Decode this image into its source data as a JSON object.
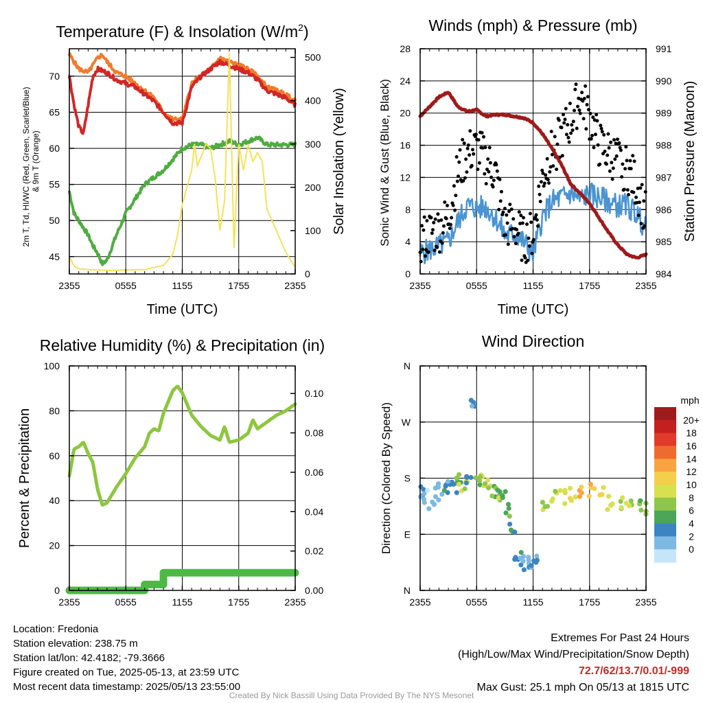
{
  "chart_data": [
    {
      "type": "line",
      "title": "Temperature (F) & Insolation (W/m²)",
      "xlabel": "Time (UTC)",
      "ylabel": "2m T, Td, HI/WC (Red, Green, Scarlet/Blue)",
      "ylabel2": "& 9m T (Orange)",
      "ylabel_right": "Solar Insolation (Yellow)",
      "x_ticks": [
        "2355",
        "0555",
        "1155",
        "1755",
        "2355"
      ],
      "y_ticks": [
        45,
        50,
        55,
        60,
        65,
        70
      ],
      "y2_ticks": [
        0,
        100,
        200,
        300,
        400,
        500
      ],
      "ylim": [
        42.6,
        73.8
      ],
      "y2lim": [
        0,
        520
      ],
      "grid": true,
      "series": [
        {
          "color": "#f07b2a",
          "x": [
            0,
            1,
            2,
            3,
            3.5,
            4,
            5,
            6,
            7,
            8,
            9,
            10,
            11,
            12,
            13,
            14,
            15,
            16,
            17,
            18,
            19,
            20,
            21,
            22,
            23,
            24
          ],
          "values": [
            73,
            71,
            70.5,
            72.5,
            73,
            72,
            70.5,
            70,
            69,
            68,
            67,
            65,
            64,
            64,
            69,
            70,
            71,
            72.5,
            72,
            71.5,
            71,
            70,
            68.5,
            68,
            67.5,
            66.5
          ]
        },
        {
          "color": "#d12727",
          "x": [
            0,
            0.5,
            1,
            1.5,
            2,
            2.5,
            3,
            4,
            5,
            6,
            7,
            8,
            9,
            10,
            11,
            12,
            13,
            14,
            15,
            16,
            17,
            18,
            19,
            20,
            21,
            22,
            23,
            24
          ],
          "values": [
            70,
            66,
            63,
            62,
            66,
            70,
            71,
            70.5,
            69.5,
            69,
            68.5,
            67.5,
            66.5,
            65,
            63.5,
            63.5,
            68.5,
            70,
            71,
            72,
            71.5,
            71,
            70.5,
            69.5,
            68,
            67.5,
            67,
            66
          ]
        },
        {
          "color": "#4fac41",
          "x": [
            0,
            0.5,
            1,
            1.5,
            2,
            2.5,
            3,
            3.5,
            4,
            5,
            6,
            7,
            8,
            9,
            10,
            11,
            12,
            13,
            14,
            15,
            16,
            17,
            18,
            19,
            20,
            21,
            22,
            23,
            24
          ],
          "values": [
            54,
            51,
            50,
            49,
            48,
            46.5,
            45.5,
            44,
            44.5,
            48,
            51,
            53,
            55,
            56,
            57,
            58.5,
            60,
            60.5,
            60.5,
            60,
            60.5,
            61,
            60.5,
            61,
            61.5,
            60.5,
            60.5,
            60.5,
            60.5
          ]
        },
        {
          "color": "#f7e156",
          "axis": "right",
          "x": [
            0,
            0.5,
            1,
            2,
            4,
            8,
            10,
            11,
            11.5,
            12,
            13,
            13.3,
            13.6,
            14,
            14.5,
            15,
            15.5,
            16,
            16.5,
            17,
            17.5,
            18,
            18.5,
            19,
            19.5,
            20,
            20.5,
            21,
            22,
            23,
            24
          ],
          "values": [
            40,
            18,
            12,
            10,
            8,
            10,
            20,
            45,
            90,
            160,
            240,
            300,
            250,
            270,
            300,
            290,
            220,
            100,
            170,
            510,
            60,
            300,
            240,
            300,
            260,
            280,
            260,
            150,
            100,
            50,
            15
          ]
        }
      ]
    },
    {
      "type": "line",
      "title": "Winds (mph) & Pressure (mb)",
      "xlabel": "Time (UTC)",
      "ylabel": "Sonic Wind & Gust (Blue, Black)",
      "ylabel_right": "Station Pressure (Maroon)",
      "x_ticks": [
        "2355",
        "0555",
        "1155",
        "1755",
        "2355"
      ],
      "y_ticks": [
        0,
        4,
        8,
        12,
        16,
        20,
        24,
        28
      ],
      "y2_ticks": [
        984,
        985,
        986,
        987,
        988,
        989,
        990,
        991
      ],
      "ylim": [
        0,
        28
      ],
      "y2lim": [
        984,
        991
      ],
      "grid": true,
      "series": [
        {
          "name": "wind",
          "color": "#4a94d2",
          "x": [
            0,
            1,
            2,
            3,
            4,
            5,
            6,
            7,
            8,
            9,
            10,
            11,
            12,
            13,
            14,
            15,
            16,
            17,
            18,
            19,
            20,
            21,
            22,
            23,
            24
          ],
          "values": [
            2.5,
            3,
            3.5,
            4,
            6.5,
            8.5,
            8.2,
            8.3,
            7,
            4.8,
            5,
            4,
            2.5,
            7,
            9,
            9.5,
            10,
            9.3,
            10,
            9.5,
            9,
            8.5,
            8.5,
            7.5,
            5.5
          ]
        },
        {
          "name": "gust",
          "color": "#000000",
          "type": "scatter",
          "x": [
            0,
            1,
            2,
            3,
            4,
            5,
            6,
            7,
            8,
            9,
            10,
            11,
            12,
            13,
            14,
            15,
            16,
            17,
            18,
            19,
            20,
            21,
            22,
            23,
            24
          ],
          "values": [
            4,
            5,
            5.5,
            7,
            12.5,
            15,
            15.5,
            14,
            12.5,
            6,
            6,
            4,
            5,
            12,
            15,
            17,
            19,
            22,
            19.5,
            16,
            15,
            14,
            13,
            11,
            7
          ]
        },
        {
          "name": "pressure",
          "color": "#9e1b1b",
          "axis": "right",
          "x": [
            0,
            1,
            2,
            3,
            4,
            5,
            6,
            7,
            8,
            9,
            10,
            11,
            12,
            13,
            14,
            15,
            16,
            17,
            18,
            19,
            20,
            21,
            22,
            23,
            24
          ],
          "values": [
            988.9,
            989.2,
            989.5,
            989.65,
            989.2,
            989.05,
            989.1,
            988.9,
            988.95,
            988.95,
            988.9,
            988.85,
            988.7,
            988.35,
            987.9,
            987.4,
            986.8,
            986.5,
            986.2,
            985.75,
            985.3,
            984.9,
            984.6,
            984.5,
            984.6
          ]
        }
      ]
    },
    {
      "type": "line",
      "title": "Relative Humidity (%) & Precipitation (in)",
      "ylabel": "Percent & Precipitation",
      "x_ticks": [
        "2355",
        "0555",
        "1155",
        "1755",
        "2355"
      ],
      "y_ticks": [
        0,
        20,
        40,
        60,
        80,
        100
      ],
      "y2_ticks": [
        "0.00",
        "0.02",
        "0.04",
        "0.06",
        "0.08",
        "0.10"
      ],
      "ylim": [
        0,
        100
      ],
      "y2lim": [
        0,
        0.114
      ],
      "grid": true,
      "series": [
        {
          "name": "humidity",
          "color": "#8dc63f",
          "x": [
            0,
            0.5,
            1,
            1.5,
            2,
            2.5,
            3,
            3.5,
            4,
            5,
            6,
            7,
            8,
            8.5,
            9,
            9.5,
            10,
            11,
            11.5,
            12,
            13,
            14,
            15,
            16,
            16.5,
            17,
            18,
            19,
            19.5,
            20,
            21,
            22,
            23,
            24
          ],
          "values": [
            51,
            63,
            64,
            66,
            61,
            57,
            45,
            38,
            39,
            46,
            52,
            59,
            64,
            70,
            72,
            71,
            79,
            89,
            91,
            88,
            78,
            73,
            69,
            67,
            73,
            66,
            67,
            70,
            76,
            72,
            75,
            78,
            80,
            83
          ]
        },
        {
          "name": "precipitation",
          "color": "#4cb944",
          "axis": "right",
          "x": [
            0,
            8,
            8,
            10,
            10,
            24
          ],
          "values": [
            0,
            0,
            0.003,
            0.003,
            0.009,
            0.009
          ]
        }
      ]
    },
    {
      "type": "scatter",
      "title": "Wind Direction",
      "ylabel": "Direction (Colored By Speed)",
      "x_ticks": [
        "2355",
        "0555",
        "1155",
        "1755",
        "2355"
      ],
      "y_ticks": [
        "N",
        "E",
        "S",
        "W",
        "N"
      ],
      "ylim": [
        0,
        360
      ],
      "grid": true,
      "colorbar": {
        "unit": "mph",
        "labels": [
          "20+",
          "18",
          "16",
          "14",
          "12",
          "10",
          "8",
          "6",
          "4",
          "2",
          "0"
        ],
        "colors": [
          "#9e1b1b",
          "#c3201f",
          "#df3a2c",
          "#ef6a2e",
          "#f9a440",
          "#f3cf4b",
          "#d7e04f",
          "#8ec64b",
          "#4da55a",
          "#3c85c0",
          "#7db9e3",
          "#c5e6f7"
        ]
      },
      "series": [
        {
          "name": "direction",
          "x": [
            0,
            0.5,
            1,
            1.5,
            2,
            2.5,
            3,
            3.5,
            4,
            4.5,
            5,
            5.5,
            6,
            6.5,
            7,
            7.5,
            8,
            8.5,
            9,
            9.5,
            10,
            10.5,
            11,
            11.5,
            12,
            13,
            14,
            15,
            16,
            17,
            18,
            19,
            20,
            21,
            22,
            23,
            24
          ],
          "values": [
            160,
            150,
            140,
            155,
            165,
            160,
            170,
            165,
            175,
            170,
            180,
            300,
            180,
            175,
            170,
            160,
            155,
            150,
            130,
            100,
            60,
            50,
            40,
            45,
            45,
            140,
            150,
            150,
            155,
            160,
            160,
            155,
            140,
            140,
            140,
            135,
            130
          ],
          "speeds": [
            2,
            2,
            1,
            2,
            3,
            4,
            4,
            6,
            8,
            10,
            4,
            4,
            8,
            9,
            9,
            8,
            8,
            7,
            6,
            5,
            4,
            4,
            3,
            3,
            4,
            8,
            9,
            10,
            11,
            13,
            13,
            11,
            10,
            9,
            9,
            8,
            8
          ]
        }
      ]
    }
  ],
  "info": {
    "location": "Location: Fredonia",
    "elevation": "Station elevation: 238.75 m",
    "latlon": "Station lat/lon: 42.4182; -79.3666",
    "created": "Figure created on Tue, 2025-05-13, at 23:59 UTC",
    "recent": "Most recent data timestamp: 2025/05/13 23:55:00"
  },
  "extremes": {
    "title": "Extremes For Past 24 Hours",
    "subtitle": "(High/Low/Max Wind/Precipitation/Snow Depth)",
    "values": "72.7/62/13.7/0.01/-999",
    "gust": "Max Gust: 25.1 mph On 05/13 at 1815 UTC"
  },
  "credit": "Created By Nick Bassill Using Data Provided By The NYS Mesonet"
}
